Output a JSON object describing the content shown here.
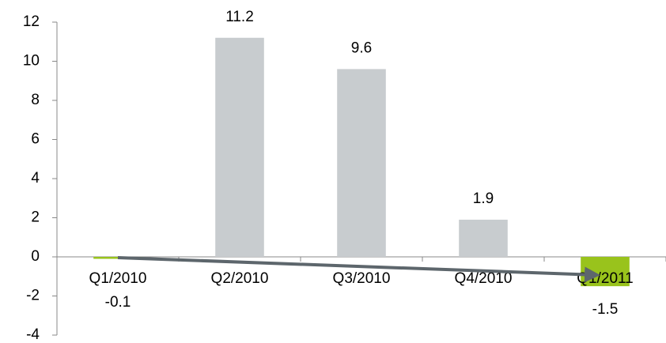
{
  "chart_data": {
    "type": "bar",
    "categories": [
      "Q1/2010",
      "Q2/2010",
      "Q3/2010",
      "Q4/2010",
      "Q1/2011"
    ],
    "values": [
      -0.1,
      11.2,
      9.6,
      1.9,
      -1.5
    ],
    "colors": [
      "#99c31c",
      "#c8cccf",
      "#c8cccf",
      "#c8cccf",
      "#99c31c"
    ],
    "ylim": [
      -4,
      12
    ],
    "yticks": [
      -4,
      -2,
      0,
      2,
      4,
      6,
      8,
      10,
      12
    ],
    "grid": false
  }
}
